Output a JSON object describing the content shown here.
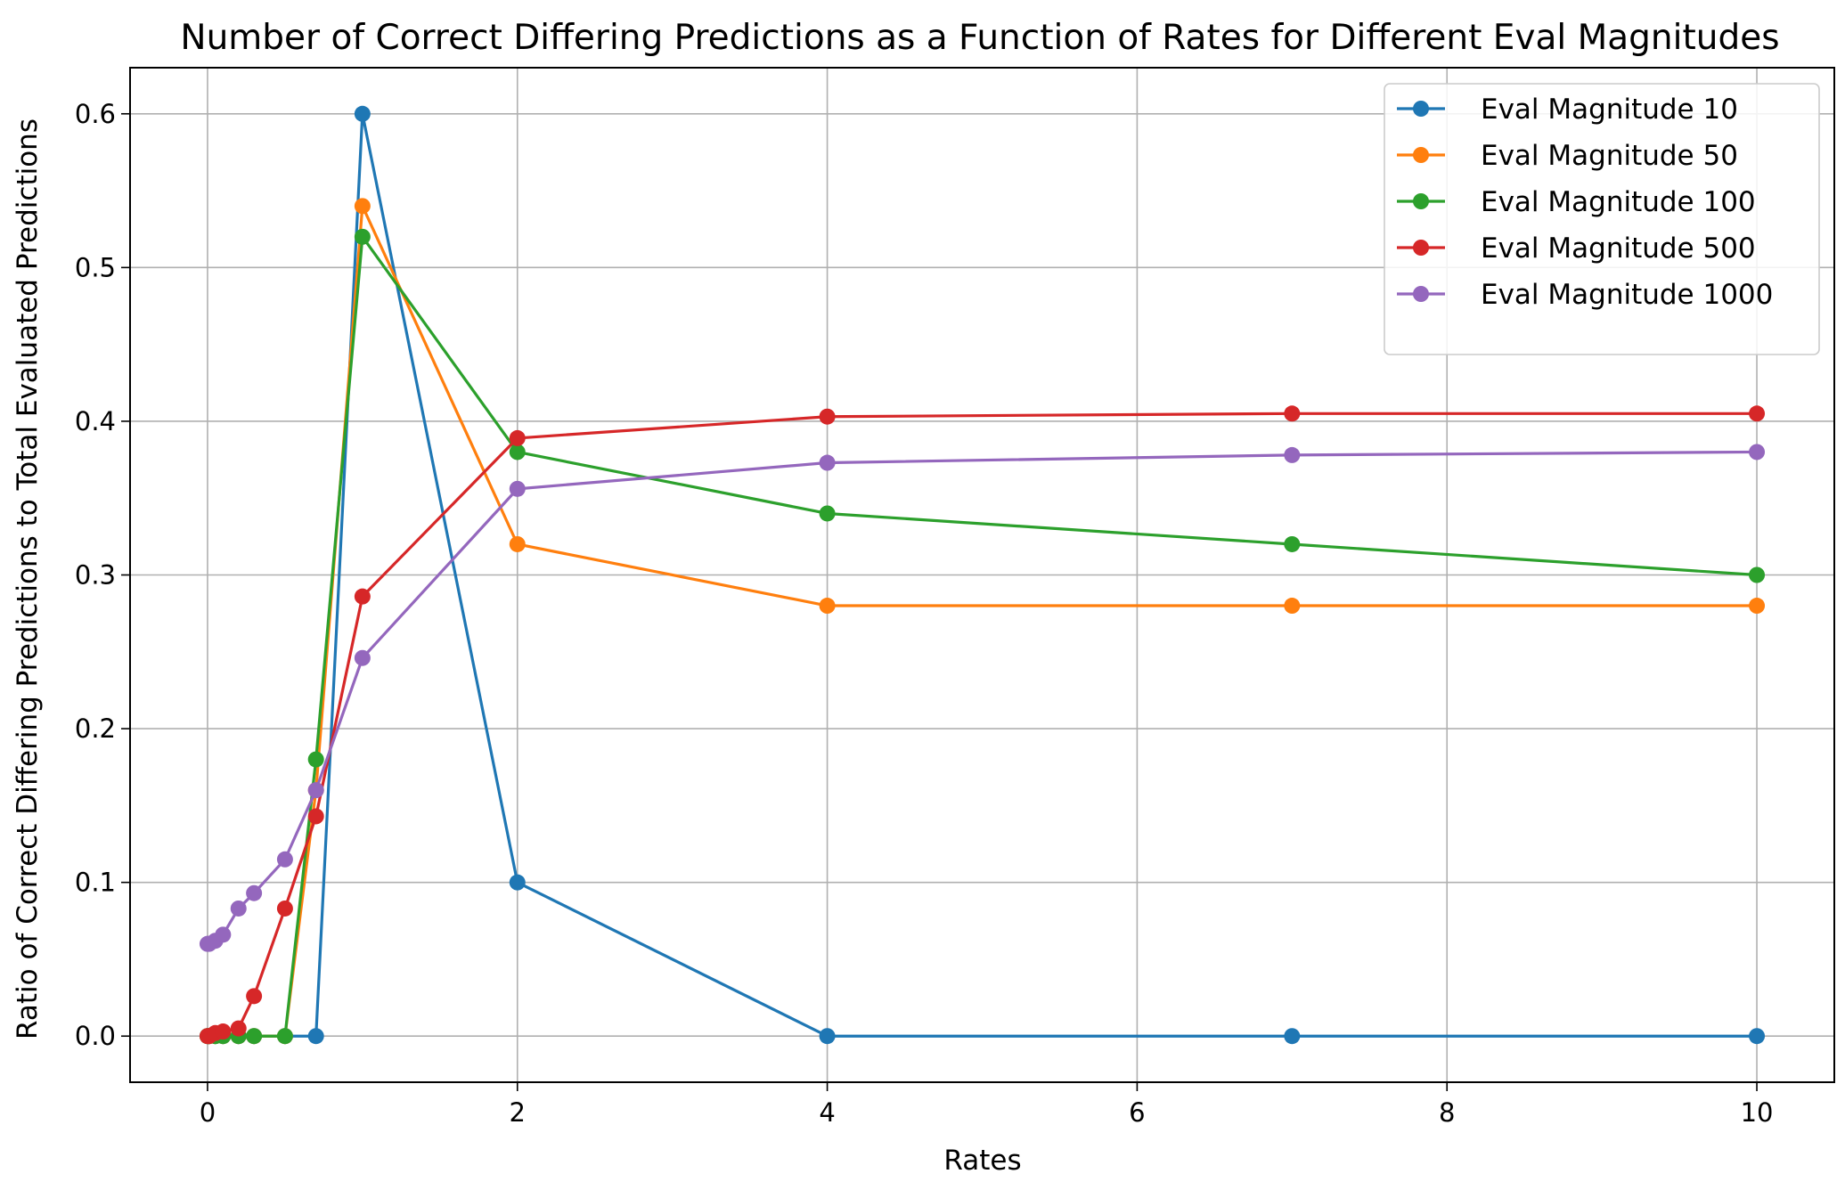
{
  "chart_data": {
    "type": "line",
    "title": "Number of Correct Differing Predictions as a Function of Rates for Different Eval Magnitudes",
    "xlabel": "Rates",
    "ylabel": "Ratio of Correct Differing Predictions to Total Evaluated Predictions",
    "xlim": [
      -0.5,
      10.5
    ],
    "ylim": [
      -0.03,
      0.63
    ],
    "xticks": [
      0,
      2,
      4,
      6,
      8,
      10
    ],
    "yticks": [
      0.0,
      0.1,
      0.2,
      0.3,
      0.4,
      0.5,
      0.6
    ],
    "xtick_labels": [
      "0",
      "2",
      "4",
      "6",
      "8",
      "10"
    ],
    "ytick_labels": [
      "0.0",
      "0.1",
      "0.2",
      "0.3",
      "0.4",
      "0.5",
      "0.6"
    ],
    "grid": true,
    "legend_position": "top-right",
    "x": [
      0.0,
      0.01,
      0.05,
      0.1,
      0.2,
      0.3,
      0.5,
      0.7,
      1,
      2,
      4,
      7,
      10
    ],
    "series": [
      {
        "name": "Eval Magnitude 10",
        "color": "#1f77b4",
        "values": [
          0,
          0,
          0,
          0,
          0,
          0,
          0,
          0,
          0.6,
          0.1,
          0,
          0,
          0
        ]
      },
      {
        "name": "Eval Magnitude 50",
        "color": "#ff7f0e",
        "values": [
          0,
          0,
          0,
          0,
          0,
          0,
          0,
          0.16,
          0.54,
          0.32,
          0.28,
          0.28,
          0.28
        ]
      },
      {
        "name": "Eval Magnitude 100",
        "color": "#2ca02c",
        "values": [
          0,
          0,
          0,
          0,
          0,
          0,
          0,
          0.18,
          0.52,
          0.38,
          0.34,
          0.32,
          0.3
        ]
      },
      {
        "name": "Eval Magnitude 500",
        "color": "#d62728",
        "values": [
          0,
          0,
          0.002,
          0.003,
          0.005,
          0.026,
          0.083,
          0.143,
          0.286,
          0.389,
          0.403,
          0.405,
          0.405
        ]
      },
      {
        "name": "Eval Magnitude 1000",
        "color": "#9467bd",
        "values": [
          0.06,
          0.06,
          0.062,
          0.066,
          0.083,
          0.093,
          0.115,
          0.16,
          0.246,
          0.356,
          0.373,
          0.378,
          0.38
        ]
      }
    ]
  }
}
